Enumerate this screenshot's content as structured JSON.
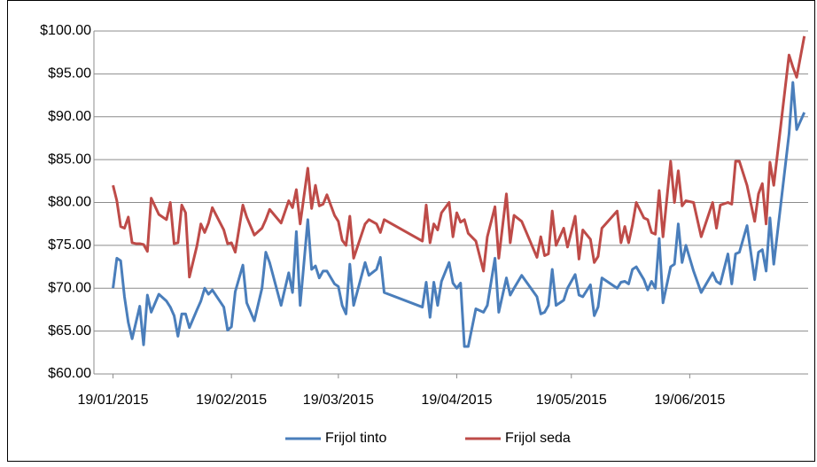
{
  "chart_data": {
    "type": "line",
    "x": [
      "2015-01-19",
      "2015-01-20",
      "2015-01-21",
      "2015-01-22",
      "2015-01-23",
      "2015-01-24",
      "2015-01-25",
      "2015-01-26",
      "2015-01-27",
      "2015-01-28",
      "2015-01-29",
      "2015-01-31",
      "2015-02-02",
      "2015-02-03",
      "2015-02-04",
      "2015-02-05",
      "2015-02-06",
      "2015-02-07",
      "2015-02-08",
      "2015-02-10",
      "2015-02-11",
      "2015-02-12",
      "2015-02-13",
      "2015-02-14",
      "2015-02-17",
      "2015-02-18",
      "2015-02-19",
      "2015-02-20",
      "2015-02-22",
      "2015-02-23",
      "2015-02-25",
      "2015-02-27",
      "2015-02-28",
      "2015-03-01",
      "2015-03-04",
      "2015-03-06",
      "2015-03-07",
      "2015-03-08",
      "2015-03-09",
      "2015-03-11",
      "2015-03-12",
      "2015-03-13",
      "2015-03-14",
      "2015-03-15",
      "2015-03-16",
      "2015-03-18",
      "2015-03-19",
      "2015-03-20",
      "2015-03-21",
      "2015-03-22",
      "2015-03-23",
      "2015-03-26",
      "2015-03-27",
      "2015-03-29",
      "2015-03-30",
      "2015-03-31",
      "2015-04-10",
      "2015-04-11",
      "2015-04-12",
      "2015-04-13",
      "2015-04-14",
      "2015-04-15",
      "2015-04-17",
      "2015-04-18",
      "2015-04-19",
      "2015-04-20",
      "2015-04-21",
      "2015-04-22",
      "2015-04-24",
      "2015-04-26",
      "2015-04-27",
      "2015-04-29",
      "2015-04-30",
      "2015-05-02",
      "2015-05-03",
      "2015-05-04",
      "2015-05-06",
      "2015-05-10",
      "2015-05-11",
      "2015-05-12",
      "2015-05-13",
      "2015-05-14",
      "2015-05-15",
      "2015-05-17",
      "2015-05-18",
      "2015-05-20",
      "2015-05-21",
      "2015-05-22",
      "2015-05-24",
      "2015-05-25",
      "2015-05-26",
      "2015-05-27",
      "2015-05-31",
      "2015-06-01",
      "2015-06-02",
      "2015-06-03",
      "2015-06-04",
      "2015-06-05",
      "2015-06-07",
      "2015-06-08",
      "2015-06-09",
      "2015-06-10",
      "2015-06-11",
      "2015-06-12",
      "2015-06-14",
      "2015-06-15",
      "2015-06-16",
      "2015-06-17",
      "2015-06-18",
      "2015-06-20",
      "2015-06-22",
      "2015-06-25",
      "2015-06-26",
      "2015-06-27",
      "2015-06-29",
      "2015-06-30",
      "2015-07-01",
      "2015-07-02",
      "2015-07-04",
      "2015-07-06",
      "2015-07-07",
      "2015-07-08",
      "2015-07-09",
      "2015-07-10",
      "2015-07-11",
      "2015-07-15",
      "2015-07-16",
      "2015-07-17",
      "2015-07-19"
    ],
    "series": [
      {
        "name": "Frijol tinto",
        "color": "#4a7ebb",
        "values": [
          70,
          73.5,
          73.2,
          69,
          66,
          64.1,
          66,
          67.9,
          63.4,
          69.2,
          67.2,
          69.3,
          68.5,
          67.8,
          66.8,
          64.4,
          67,
          67,
          65.4,
          67.5,
          68.5,
          70,
          69.3,
          69.8,
          67.8,
          65.1,
          65.5,
          69.6,
          72.7,
          68.3,
          66.2,
          70,
          74.2,
          73,
          68,
          71.8,
          69.5,
          76.6,
          68,
          78,
          72.2,
          72.6,
          71.2,
          72,
          72,
          70.5,
          70.2,
          68,
          67,
          72.8,
          68,
          73,
          71.5,
          72.2,
          73.6,
          69.5,
          67.8,
          70.7,
          66.6,
          70.7,
          68,
          70.8,
          73,
          70.6,
          70,
          70.6,
          63.2,
          63.2,
          67.6,
          67.2,
          68,
          73.5,
          67.2,
          71.2,
          69.2,
          70,
          71.5,
          69,
          67,
          67.2,
          68,
          72.2,
          68,
          68.6,
          70,
          71.6,
          69.2,
          69,
          70.4,
          66.8,
          67.8,
          71.2,
          70,
          70.7,
          70.8,
          70.5,
          72.2,
          72.5,
          71,
          69.8,
          70.8,
          70,
          75.8,
          68.3,
          72.5,
          72.8,
          77.5,
          73,
          75,
          72,
          69.5,
          71.8,
          70.8,
          70.5,
          74,
          70.5,
          74,
          74.2,
          77.3,
          71,
          74.2,
          74.5,
          72,
          78.2,
          72.8,
          88,
          94,
          88.5,
          90.5
        ]
      },
      {
        "name": "Frijol seda",
        "color": "#be4b48",
        "values": [
          82,
          80.2,
          77.2,
          77,
          78.3,
          75.3,
          75.2,
          75.2,
          75.1,
          74.3,
          80.5,
          78.6,
          78,
          80,
          75.2,
          75.3,
          79.7,
          78.8,
          71.3,
          75,
          77.5,
          76.5,
          77.6,
          79.4,
          76.8,
          75.2,
          75.3,
          74.2,
          79.7,
          78.3,
          76.2,
          77,
          78,
          79.2,
          77.6,
          80.2,
          79.4,
          81.5,
          77.5,
          84,
          79.3,
          82,
          79.6,
          79.8,
          80.9,
          78.5,
          77.8,
          75.6,
          75,
          78.4,
          73.5,
          77.5,
          78,
          77.5,
          76.5,
          78,
          75.5,
          79.7,
          75.3,
          77.5,
          76.8,
          78.8,
          80,
          76,
          78.8,
          77.7,
          78,
          76.4,
          75.5,
          72,
          76,
          79.5,
          73.5,
          81,
          75.3,
          78.5,
          77.8,
          73.6,
          76,
          73.8,
          74,
          79,
          75,
          77,
          74.8,
          78.4,
          73.4,
          76.8,
          75.7,
          73,
          73.7,
          77,
          79,
          75.3,
          77.2,
          75.3,
          77.4,
          80,
          78.2,
          78,
          76.5,
          76.3,
          81.4,
          76,
          84.8,
          80,
          83.7,
          79.6,
          80.2,
          80,
          76,
          80,
          77,
          79.7,
          80,
          79.8,
          84.8,
          84.8,
          82,
          77.8,
          81,
          82.2,
          77.5,
          84.7,
          82,
          97.2,
          95.8,
          94.6,
          99.4
        ]
      }
    ],
    "xlim": [
      "2015-01-14",
      "2015-07-20"
    ],
    "xticks": [
      {
        "value": "2015-01-19",
        "label": "19/01/2015"
      },
      {
        "value": "2015-02-19",
        "label": "19/02/2015"
      },
      {
        "value": "2015-03-19",
        "label": "19/03/2015"
      },
      {
        "value": "2015-04-19",
        "label": "19/04/2015"
      },
      {
        "value": "2015-05-19",
        "label": "19/05/2015"
      },
      {
        "value": "2015-06-19",
        "label": "19/06/2015"
      }
    ],
    "ylim": [
      60,
      100
    ],
    "yticks": [
      {
        "value": 60,
        "label": "$60.00"
      },
      {
        "value": 65,
        "label": "$65.00"
      },
      {
        "value": 70,
        "label": "$70.00"
      },
      {
        "value": 75,
        "label": "$75.00"
      },
      {
        "value": 80,
        "label": "$80.00"
      },
      {
        "value": 85,
        "label": "$85.00"
      },
      {
        "value": 90,
        "label": "$90.00"
      },
      {
        "value": 95,
        "label": "$95.00"
      },
      {
        "value": 100,
        "label": "$100.00"
      }
    ],
    "grid": true,
    "legend": "bottom"
  }
}
